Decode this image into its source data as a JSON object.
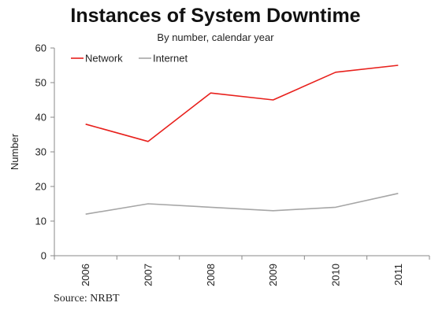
{
  "chart_data": {
    "type": "line",
    "title": "Instances of System Downtime",
    "subtitle": "By number, calendar year",
    "xlabel": "",
    "ylabel": "Number",
    "categories": [
      "2006",
      "2007",
      "2008",
      "2009",
      "2010",
      "2011"
    ],
    "ylim": [
      0,
      60
    ],
    "yticks": [
      0,
      10,
      20,
      30,
      40,
      50,
      60
    ],
    "grid": false,
    "legend_position": "top-left",
    "series": [
      {
        "name": "Network",
        "color": "#e8201c",
        "values": [
          38,
          33,
          47,
          45,
          53,
          55
        ]
      },
      {
        "name": "Internet",
        "color": "#a6a6a6",
        "values": [
          12,
          15,
          14,
          13,
          14,
          18
        ]
      }
    ],
    "source": "Source: NRBT"
  }
}
